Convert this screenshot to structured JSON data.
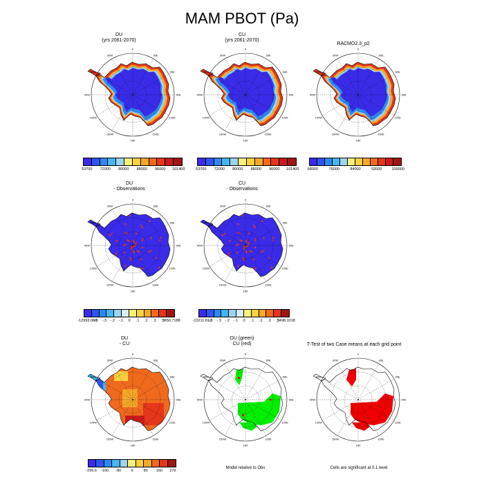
{
  "title": "MAM PBOT (Pa)",
  "lon_labels": [
    "0",
    "30E",
    "60E",
    "90E",
    "120E",
    "150E",
    "180",
    "150W",
    "120W",
    "90W",
    "60W",
    "30W"
  ],
  "panels": [
    {
      "id": "r1c1",
      "title1": "DU",
      "title2": "(yrs 2061-2070)",
      "kind": "abs"
    },
    {
      "id": "r1c2",
      "title1": "CU",
      "title2": "(yrs 2061-2070)",
      "kind": "abs"
    },
    {
      "id": "r1c3",
      "title1": "RACMO2.3_p2",
      "title2": "",
      "kind": "abs"
    },
    {
      "id": "r2c1",
      "title1": "DU",
      "title2": "- Observations",
      "kind": "diff"
    },
    {
      "id": "r2c2",
      "title1": "CU",
      "title2": "- Observations",
      "kind": "diff"
    },
    {
      "id": "r3c1",
      "title1": "DU",
      "title2": "- CU",
      "kind": "dcu"
    },
    {
      "id": "r3c2",
      "title1": "DU (green)",
      "title2": "CU (red)",
      "kind": "green"
    },
    {
      "id": "r3c3",
      "title1": "T-Test of two Case means at each grid point",
      "title2": "",
      "kind": "ttest"
    }
  ],
  "colorbars": {
    "r1c1": {
      "labels": [
        "53700",
        "72000",
        "80000",
        "88000",
        "96000",
        "101400"
      ],
      "colors": [
        "#3a2be8",
        "#2f55f0",
        "#2d89f0",
        "#45b6ee",
        "#9fd3f2",
        "#f8f27a",
        "#fbd13e",
        "#f7a82a",
        "#f06a1d",
        "#e5361b",
        "#c81b1b",
        "#a11515"
      ]
    },
    "r1c2": {
      "labels": [
        "53700",
        "72000",
        "80000",
        "88000",
        "96000",
        "101400"
      ],
      "colors": [
        "#3a2be8",
        "#2f55f0",
        "#2d89f0",
        "#45b6ee",
        "#9fd3f2",
        "#f8f27a",
        "#fbd13e",
        "#f7a82a",
        "#f06a1d",
        "#e5361b",
        "#c81b1b",
        "#a11515"
      ]
    },
    "r1c3": {
      "labels": [
        "68000",
        "76000",
        "84000",
        "92000",
        "100000"
      ],
      "colors": [
        "#3a2be8",
        "#2f55f0",
        "#2d89f0",
        "#45b6ee",
        "#9fd3f2",
        "#f8f27a",
        "#fbd13e",
        "#f7a82a",
        "#f06a1d",
        "#e5361b",
        "#c81b1b",
        "#a11515"
      ]
    },
    "r2c1": {
      "labels": [
        "-12993.086",
        "-.5",
        "-.3",
        "-.2",
        "-.1",
        "0",
        ".1",
        ".2",
        ".3",
        ".5",
        "3650.7188"
      ],
      "colors": [
        "#3a2be8",
        "#2f55f0",
        "#2d89f0",
        "#45b6ee",
        "#9fd3f2",
        "#d7eef8",
        "#f8f27a",
        "#fbd13e",
        "#f7a82a",
        "#f06a1d",
        "#e5361b",
        "#a11515"
      ]
    },
    "r2c2": {
      "labels": [
        "-13211.812",
        "-.5",
        "-.3",
        "-.2",
        "-.1",
        "0",
        ".1",
        ".2",
        ".3",
        ".5",
        "3498.1018"
      ],
      "colors": [
        "#3a2be8",
        "#2f55f0",
        "#2d89f0",
        "#45b6ee",
        "#9fd3f2",
        "#d7eef8",
        "#f8f27a",
        "#fbd13e",
        "#f7a82a",
        "#f06a1d",
        "#e5361b",
        "#a11515"
      ]
    },
    "r3c1": {
      "labels": [
        "-256.6",
        "-160",
        "-80",
        "0",
        "80",
        "160",
        "279"
      ],
      "colors": [
        "#3a2be8",
        "#2f55f0",
        "#2d89f0",
        "#45b6ee",
        "#9fd3f2",
        "#f8f27a",
        "#fbd13e",
        "#f7a82a",
        "#f06a1d",
        "#e5361b",
        "#a11515"
      ]
    }
  },
  "notes": {
    "r3c2": "Model relative to Obs",
    "r3c3": "Cells are significant at 0.1 level"
  },
  "colors": {
    "ice_blue": "#3a2be8",
    "coast_red": "#e5361b",
    "sig_red": "#ee0000",
    "green": "#00ee00"
  }
}
